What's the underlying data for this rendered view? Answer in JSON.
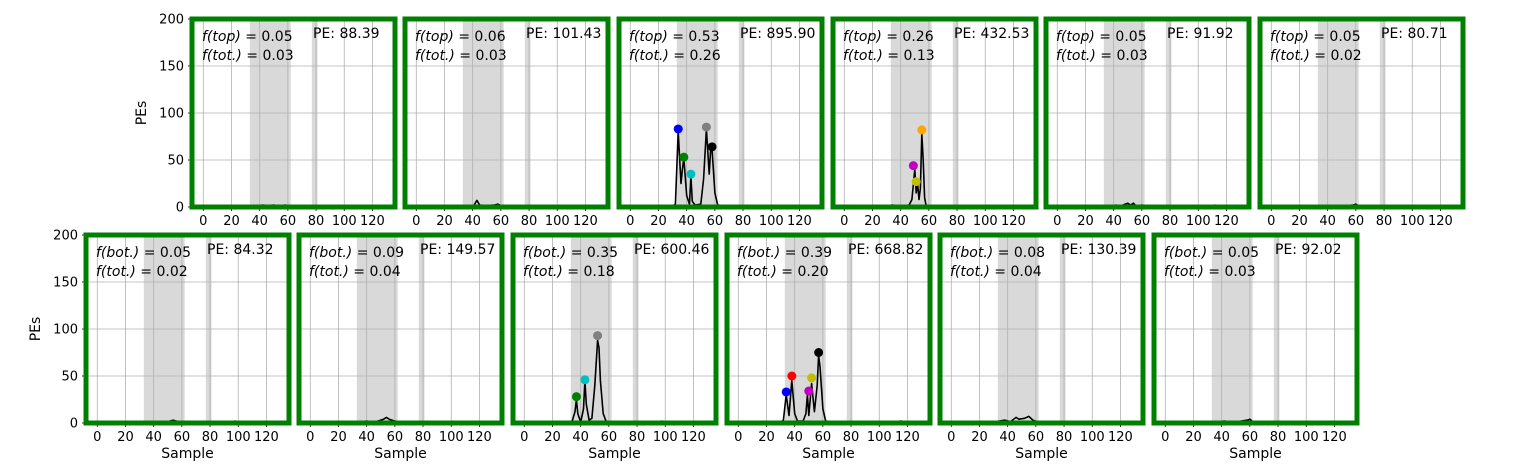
{
  "chart_data": {
    "type": "line",
    "xlabel": "Sample",
    "ylabel": "PEs",
    "xlim": [
      -8,
      136
    ],
    "ylim": [
      0,
      200
    ],
    "xticks": [
      0,
      20,
      40,
      60,
      80,
      100,
      120
    ],
    "yticks": [
      0,
      50,
      100,
      150,
      200
    ],
    "grid": true,
    "highlight_bands": [
      [
        33,
        62
      ],
      [
        77,
        81
      ]
    ],
    "border_color": "#008000",
    "trace_color": "#000000",
    "panels": [
      {
        "row": "top",
        "frac_label": "f(top) = 0.05",
        "tot_label": "f(tot.) = 0.03",
        "pe_label": "PE: 88.39",
        "trace": [
          [
            0,
            0.5
          ],
          [
            10,
            1
          ],
          [
            20,
            0.5
          ],
          [
            30,
            1.5
          ],
          [
            38,
            1
          ],
          [
            42,
            2
          ],
          [
            46,
            1.5
          ],
          [
            50,
            2
          ],
          [
            54,
            1
          ],
          [
            58,
            2
          ],
          [
            62,
            1
          ],
          [
            70,
            0.8
          ],
          [
            80,
            1.5
          ],
          [
            90,
            0.5
          ],
          [
            100,
            1
          ],
          [
            110,
            0.5
          ],
          [
            120,
            0.8
          ],
          [
            132,
            0.5
          ]
        ],
        "peaks": []
      },
      {
        "row": "top",
        "frac_label": "f(top) = 0.06",
        "tot_label": "f(tot.) = 0.03",
        "pe_label": "PE: 101.43",
        "trace": [
          [
            0,
            0.5
          ],
          [
            10,
            0.8
          ],
          [
            20,
            0.5
          ],
          [
            30,
            1.5
          ],
          [
            38,
            1
          ],
          [
            41,
            2
          ],
          [
            43,
            7
          ],
          [
            45,
            2
          ],
          [
            50,
            1.5
          ],
          [
            55,
            2
          ],
          [
            58,
            3
          ],
          [
            60,
            1.5
          ],
          [
            70,
            0.8
          ],
          [
            80,
            1
          ],
          [
            90,
            0.5
          ],
          [
            110,
            0.8
          ],
          [
            132,
            0.5
          ]
        ],
        "peaks": []
      },
      {
        "row": "top",
        "frac_label": "f(top) = 0.53",
        "tot_label": "f(tot.) = 0.26",
        "pe_label": "PE: 895.90",
        "trace": [
          [
            0,
            0.5
          ],
          [
            10,
            1
          ],
          [
            20,
            0.5
          ],
          [
            30,
            1
          ],
          [
            32,
            3
          ],
          [
            34,
            80
          ],
          [
            36,
            25
          ],
          [
            37,
            40
          ],
          [
            38,
            52
          ],
          [
            40,
            12
          ],
          [
            42,
            3
          ],
          [
            43,
            33
          ],
          [
            44,
            6
          ],
          [
            46,
            2
          ],
          [
            50,
            3
          ],
          [
            52,
            30
          ],
          [
            54,
            83
          ],
          [
            56,
            35
          ],
          [
            57,
            60
          ],
          [
            58,
            62
          ],
          [
            60,
            15
          ],
          [
            62,
            2
          ],
          [
            70,
            1
          ],
          [
            80,
            0.5
          ],
          [
            90,
            1
          ],
          [
            100,
            0.5
          ],
          [
            120,
            0.8
          ],
          [
            132,
            0.5
          ]
        ],
        "peaks": [
          {
            "x": 34,
            "y": 83,
            "color": "#0000ff"
          },
          {
            "x": 38,
            "y": 53,
            "color": "#008000"
          },
          {
            "x": 43,
            "y": 35,
            "color": "#00bfbf"
          },
          {
            "x": 54,
            "y": 85,
            "color": "#808080"
          },
          {
            "x": 58,
            "y": 64,
            "color": "#000000"
          }
        ]
      },
      {
        "row": "top",
        "frac_label": "f(top) = 0.26",
        "tot_label": "f(tot.) = 0.13",
        "pe_label": "PE: 432.53",
        "trace": [
          [
            0,
            0.5
          ],
          [
            10,
            1
          ],
          [
            20,
            0.5
          ],
          [
            30,
            1
          ],
          [
            34,
            2
          ],
          [
            40,
            1
          ],
          [
            46,
            2
          ],
          [
            48,
            8
          ],
          [
            50,
            40
          ],
          [
            51,
            15
          ],
          [
            52,
            25
          ],
          [
            53,
            8
          ],
          [
            54,
            20
          ],
          [
            55,
            78
          ],
          [
            56,
            50
          ],
          [
            57,
            10
          ],
          [
            58,
            2
          ],
          [
            62,
            1
          ],
          [
            70,
            0.5
          ],
          [
            80,
            1
          ],
          [
            90,
            0.5
          ],
          [
            110,
            0.8
          ],
          [
            132,
            0.5
          ]
        ],
        "peaks": [
          {
            "x": 49,
            "y": 44,
            "color": "#bf00bf"
          },
          {
            "x": 51,
            "y": 27,
            "color": "#bfbf00"
          },
          {
            "x": 55,
            "y": 82,
            "color": "#ffa500"
          }
        ]
      },
      {
        "row": "top",
        "frac_label": "f(top) = 0.05",
        "tot_label": "f(tot.) = 0.03",
        "pe_label": "PE: 91.92",
        "trace": [
          [
            0,
            0.5
          ],
          [
            10,
            1
          ],
          [
            20,
            0.5
          ],
          [
            30,
            1
          ],
          [
            38,
            1
          ],
          [
            42,
            2
          ],
          [
            45,
            1
          ],
          [
            48,
            3
          ],
          [
            50,
            4
          ],
          [
            52,
            2
          ],
          [
            54,
            4
          ],
          [
            56,
            1
          ],
          [
            60,
            2
          ],
          [
            65,
            0.8
          ],
          [
            80,
            1
          ],
          [
            100,
            0.5
          ],
          [
            110,
            0.8
          ],
          [
            112,
            2
          ],
          [
            114,
            0.8
          ],
          [
            132,
            0.5
          ]
        ],
        "peaks": []
      },
      {
        "row": "top",
        "frac_label": "f(top) = 0.05",
        "tot_label": "f(tot.) = 0.02",
        "pe_label": "PE: 80.71",
        "trace": [
          [
            0,
            0.5
          ],
          [
            10,
            1
          ],
          [
            20,
            0.5
          ],
          [
            30,
            1
          ],
          [
            40,
            1.5
          ],
          [
            50,
            1
          ],
          [
            58,
            2
          ],
          [
            60,
            3
          ],
          [
            62,
            1
          ],
          [
            70,
            0.8
          ],
          [
            80,
            1
          ],
          [
            90,
            0.5
          ],
          [
            100,
            1
          ],
          [
            120,
            0.5
          ],
          [
            132,
            0.5
          ]
        ],
        "peaks": []
      },
      {
        "row": "bot",
        "frac_label": "f(bot.) = 0.05",
        "tot_label": "f(tot.) = 0.02",
        "pe_label": "PE: 84.32",
        "trace": [
          [
            0,
            0.5
          ],
          [
            10,
            1
          ],
          [
            20,
            0.5
          ],
          [
            30,
            1
          ],
          [
            40,
            1
          ],
          [
            50,
            1.5
          ],
          [
            54,
            3
          ],
          [
            56,
            2
          ],
          [
            60,
            1
          ],
          [
            70,
            0.8
          ],
          [
            80,
            1
          ],
          [
            90,
            0.5
          ],
          [
            98,
            2
          ],
          [
            100,
            0.8
          ],
          [
            120,
            0.5
          ],
          [
            132,
            0.5
          ]
        ],
        "peaks": []
      },
      {
        "row": "bot",
        "frac_label": "f(bot.) = 0.09",
        "tot_label": "f(tot.) = 0.04",
        "pe_label": "PE: 149.57",
        "trace": [
          [
            0,
            0.5
          ],
          [
            10,
            1
          ],
          [
            20,
            0.5
          ],
          [
            25,
            1
          ],
          [
            30,
            1.5
          ],
          [
            34,
            1
          ],
          [
            40,
            2
          ],
          [
            44,
            1
          ],
          [
            48,
            2
          ],
          [
            52,
            4
          ],
          [
            54,
            6
          ],
          [
            56,
            4
          ],
          [
            60,
            2
          ],
          [
            64,
            1
          ],
          [
            70,
            1
          ],
          [
            80,
            0.8
          ],
          [
            90,
            0.5
          ],
          [
            110,
            0.8
          ],
          [
            132,
            0.5
          ]
        ],
        "peaks": []
      },
      {
        "row": "bot",
        "frac_label": "f(bot.) = 0.35",
        "tot_label": "f(tot.) = 0.18",
        "pe_label": "PE: 600.46",
        "trace": [
          [
            0,
            0.5
          ],
          [
            10,
            1
          ],
          [
            20,
            0.5
          ],
          [
            30,
            1
          ],
          [
            34,
            2
          ],
          [
            36,
            12
          ],
          [
            37,
            25
          ],
          [
            38,
            10
          ],
          [
            40,
            1
          ],
          [
            42,
            15
          ],
          [
            43,
            45
          ],
          [
            44,
            20
          ],
          [
            46,
            3
          ],
          [
            48,
            5
          ],
          [
            50,
            40
          ],
          [
            52,
            88
          ],
          [
            53,
            80
          ],
          [
            54,
            45
          ],
          [
            56,
            10
          ],
          [
            58,
            2
          ],
          [
            62,
            1
          ],
          [
            70,
            0.5
          ],
          [
            80,
            1
          ],
          [
            90,
            0.5
          ],
          [
            98,
            2
          ],
          [
            100,
            0.8
          ],
          [
            120,
            0.5
          ],
          [
            132,
            0.5
          ]
        ],
        "peaks": [
          {
            "x": 37,
            "y": 28,
            "color": "#008000"
          },
          {
            "x": 43,
            "y": 46,
            "color": "#00bfbf"
          },
          {
            "x": 52,
            "y": 93,
            "color": "#808080"
          }
        ]
      },
      {
        "row": "bot",
        "frac_label": "f(bot.) = 0.39",
        "tot_label": "f(tot.) = 0.20",
        "pe_label": "PE: 668.82",
        "trace": [
          [
            0,
            0.5
          ],
          [
            10,
            1
          ],
          [
            20,
            0.5
          ],
          [
            30,
            1
          ],
          [
            32,
            3
          ],
          [
            34,
            30
          ],
          [
            36,
            8
          ],
          [
            38,
            45
          ],
          [
            40,
            10
          ],
          [
            42,
            2
          ],
          [
            46,
            2
          ],
          [
            48,
            10
          ],
          [
            49,
            30
          ],
          [
            50,
            8
          ],
          [
            52,
            42
          ],
          [
            54,
            12
          ],
          [
            56,
            40
          ],
          [
            57,
            72
          ],
          [
            58,
            60
          ],
          [
            60,
            15
          ],
          [
            62,
            2
          ],
          [
            70,
            1
          ],
          [
            80,
            0.5
          ],
          [
            90,
            1
          ],
          [
            100,
            0.5
          ],
          [
            116,
            2
          ],
          [
            118,
            0.8
          ],
          [
            132,
            0.5
          ]
        ],
        "peaks": [
          {
            "x": 34,
            "y": 33,
            "color": "#0000ff"
          },
          {
            "x": 38,
            "y": 50,
            "color": "#ff0000"
          },
          {
            "x": 50,
            "y": 34,
            "color": "#bf00bf"
          },
          {
            "x": 52,
            "y": 48,
            "color": "#bfbf00"
          },
          {
            "x": 57,
            "y": 75,
            "color": "#000000"
          }
        ]
      },
      {
        "row": "bot",
        "frac_label": "f(bot.) = 0.08",
        "tot_label": "f(tot.) = 0.04",
        "pe_label": "PE: 130.39",
        "trace": [
          [
            0,
            0.5
          ],
          [
            10,
            1
          ],
          [
            20,
            0.5
          ],
          [
            30,
            1
          ],
          [
            34,
            2
          ],
          [
            38,
            3
          ],
          [
            42,
            1.5
          ],
          [
            46,
            6
          ],
          [
            48,
            4
          ],
          [
            52,
            5
          ],
          [
            55,
            7
          ],
          [
            58,
            3
          ],
          [
            62,
            1
          ],
          [
            70,
            0.5
          ],
          [
            80,
            1
          ],
          [
            90,
            0.5
          ],
          [
            110,
            0.8
          ],
          [
            132,
            0.5
          ]
        ],
        "peaks": []
      },
      {
        "row": "bot",
        "frac_label": "f(bot.) = 0.05",
        "tot_label": "f(tot.) = 0.03",
        "pe_label": "PE: 92.02",
        "trace": [
          [
            0,
            0.5
          ],
          [
            10,
            1
          ],
          [
            20,
            0.5
          ],
          [
            30,
            1
          ],
          [
            38,
            1.5
          ],
          [
            42,
            2
          ],
          [
            48,
            1
          ],
          [
            54,
            2
          ],
          [
            58,
            3
          ],
          [
            60,
            4
          ],
          [
            62,
            1.5
          ],
          [
            70,
            0.8
          ],
          [
            80,
            1
          ],
          [
            90,
            0.5
          ],
          [
            110,
            0.8
          ],
          [
            132,
            0.5
          ]
        ],
        "peaks": []
      }
    ]
  }
}
